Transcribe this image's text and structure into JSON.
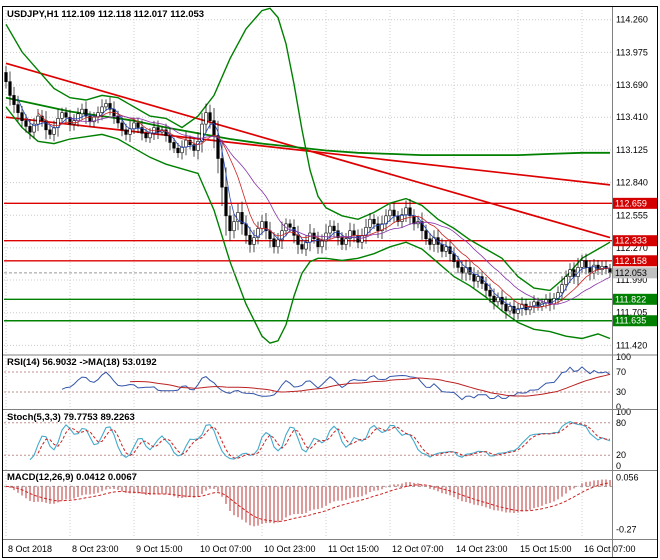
{
  "chart_data": {
    "type": "candlestick",
    "symbol": "USDJPY",
    "timeframe": "H1",
    "window_title": "USDJPY,H1 112.109 112.118 112.017 112.053",
    "current_bar": {
      "open": 112.109,
      "high": 112.118,
      "low": 112.017,
      "close": 112.053
    },
    "bars": 152,
    "x_label_step_bars": 16,
    "x_labels": [
      "8 Oct 2018",
      "8 Oct 23:00",
      "9 Oct 15:00",
      "10 Oct 07:00",
      "10 Oct 23:00",
      "11 Oct 15:00",
      "12 Oct 07:00",
      "14 Oct 23:00",
      "15 Oct 15:00",
      "16 Oct 07:00"
    ],
    "y_ticks": [
      "114.260",
      "113.975",
      "113.690",
      "113.410",
      "113.125",
      "112.840",
      "112.555",
      "112.270",
      "111.990",
      "111.705",
      "111.420"
    ],
    "price_scale": {
      "max": 114.345,
      "min": 111.345
    },
    "grid_color": "#cccccc",
    "first_open": 113.8,
    "wick": {
      "base": 0.015,
      "factor": 0.55,
      "var": 0.004,
      "mod": 7
    },
    "closes": [
      113.72,
      113.6,
      113.52,
      113.45,
      113.38,
      113.33,
      113.28,
      113.35,
      113.42,
      113.38,
      113.3,
      113.26,
      113.32,
      113.4,
      113.45,
      113.41,
      113.35,
      113.38,
      113.44,
      113.48,
      113.42,
      113.37,
      113.41,
      113.45,
      113.5,
      113.53,
      113.48,
      113.42,
      113.36,
      113.3,
      113.26,
      113.31,
      113.36,
      113.32,
      113.27,
      113.23,
      113.27,
      113.32,
      113.28,
      113.3,
      113.25,
      113.19,
      113.14,
      113.1,
      113.15,
      113.21,
      113.17,
      113.12,
      113.2,
      113.35,
      113.45,
      113.38,
      113.25,
      113.05,
      112.8,
      112.55,
      112.42,
      112.5,
      112.58,
      112.48,
      112.38,
      112.3,
      112.36,
      112.44,
      112.5,
      112.42,
      112.35,
      112.28,
      112.34,
      112.42,
      112.48,
      112.45,
      112.38,
      112.3,
      112.26,
      112.32,
      112.4,
      112.35,
      112.28,
      112.33,
      112.4,
      112.46,
      112.42,
      112.36,
      112.3,
      112.35,
      112.42,
      112.38,
      112.32,
      112.38,
      112.45,
      112.52,
      112.48,
      112.42,
      112.48,
      112.55,
      112.6,
      112.55,
      112.5,
      112.56,
      112.62,
      112.55,
      112.48,
      112.5,
      112.42,
      112.35,
      112.3,
      112.36,
      112.3,
      112.24,
      112.28,
      112.22,
      112.15,
      112.1,
      112.05,
      112.1,
      112.04,
      111.98,
      112.02,
      111.96,
      111.9,
      111.85,
      111.8,
      111.84,
      111.78,
      111.72,
      111.76,
      111.7,
      111.74,
      111.78,
      111.73,
      111.76,
      111.8,
      111.76,
      111.79,
      111.82,
      111.78,
      111.83,
      111.88,
      111.95,
      112.02,
      112.08,
      112.02,
      112.1,
      112.16,
      112.1,
      112.05,
      112.12,
      112.08,
      112.11,
      112.09,
      112.053
    ],
    "ma_overlays": [
      {
        "name": "ma-fast-blue",
        "period": 4,
        "color": "#2244bb"
      },
      {
        "name": "ma-mid-red",
        "period": 9,
        "color": "#cc2222"
      },
      {
        "name": "ma-slow-purple",
        "period": 17,
        "color": "#8833aa"
      }
    ],
    "green_overlays": {
      "color": "#008000",
      "band_upper": [
        [
          0,
          114.22
        ],
        [
          4,
          113.98
        ],
        [
          8,
          113.82
        ],
        [
          12,
          113.66
        ],
        [
          16,
          113.58
        ],
        [
          20,
          113.56
        ],
        [
          24,
          113.6
        ],
        [
          28,
          113.58
        ],
        [
          32,
          113.5
        ],
        [
          36,
          113.42
        ],
        [
          40,
          113.4
        ],
        [
          44,
          113.32
        ],
        [
          48,
          113.42
        ],
        [
          52,
          113.6
        ],
        [
          56,
          113.92
        ],
        [
          60,
          114.18
        ],
        [
          64,
          114.34
        ],
        [
          66,
          114.36
        ],
        [
          68,
          114.28
        ],
        [
          70,
          114.05
        ],
        [
          72,
          113.7
        ],
        [
          74,
          113.3
        ],
        [
          76,
          112.95
        ],
        [
          78,
          112.72
        ],
        [
          80,
          112.62
        ],
        [
          84,
          112.55
        ],
        [
          88,
          112.52
        ],
        [
          92,
          112.58
        ],
        [
          96,
          112.66
        ],
        [
          100,
          112.7
        ],
        [
          104,
          112.64
        ],
        [
          108,
          112.52
        ],
        [
          112,
          112.44
        ],
        [
          116,
          112.34
        ],
        [
          120,
          112.26
        ],
        [
          124,
          112.18
        ],
        [
          128,
          112.02
        ],
        [
          132,
          111.92
        ],
        [
          136,
          111.9
        ],
        [
          140,
          112.02
        ],
        [
          144,
          112.18
        ],
        [
          148,
          112.26
        ],
        [
          151,
          112.32
        ]
      ],
      "band_lower": [
        [
          0,
          113.5
        ],
        [
          4,
          113.32
        ],
        [
          8,
          113.2
        ],
        [
          12,
          113.18
        ],
        [
          16,
          113.22
        ],
        [
          20,
          113.24
        ],
        [
          24,
          113.26
        ],
        [
          28,
          113.22
        ],
        [
          32,
          113.14
        ],
        [
          36,
          113.06
        ],
        [
          40,
          113.0
        ],
        [
          44,
          112.96
        ],
        [
          48,
          112.92
        ],
        [
          52,
          112.6
        ],
        [
          56,
          112.15
        ],
        [
          60,
          111.78
        ],
        [
          64,
          111.5
        ],
        [
          66,
          111.44
        ],
        [
          68,
          111.46
        ],
        [
          70,
          111.6
        ],
        [
          72,
          111.85
        ],
        [
          74,
          112.05
        ],
        [
          76,
          112.15
        ],
        [
          78,
          112.18
        ],
        [
          80,
          112.18
        ],
        [
          84,
          112.16
        ],
        [
          88,
          112.18
        ],
        [
          92,
          112.22
        ],
        [
          96,
          112.28
        ],
        [
          100,
          112.32
        ],
        [
          104,
          112.26
        ],
        [
          108,
          112.14
        ],
        [
          112,
          112.02
        ],
        [
          116,
          111.94
        ],
        [
          120,
          111.84
        ],
        [
          124,
          111.72
        ],
        [
          128,
          111.62
        ],
        [
          132,
          111.56
        ],
        [
          136,
          111.54
        ],
        [
          140,
          111.5
        ],
        [
          144,
          111.48
        ],
        [
          148,
          111.52
        ],
        [
          151,
          111.48
        ]
      ],
      "ma_long": [
        [
          0,
          113.58
        ],
        [
          8,
          113.52
        ],
        [
          16,
          113.46
        ],
        [
          24,
          113.42
        ],
        [
          32,
          113.38
        ],
        [
          40,
          113.32
        ],
        [
          48,
          113.27
        ],
        [
          56,
          113.22
        ],
        [
          64,
          113.18
        ],
        [
          72,
          113.15
        ],
        [
          80,
          113.12
        ],
        [
          88,
          113.1
        ],
        [
          96,
          113.09
        ],
        [
          104,
          113.08
        ],
        [
          112,
          113.08
        ],
        [
          120,
          113.08
        ],
        [
          128,
          113.08
        ],
        [
          136,
          113.09
        ],
        [
          144,
          113.1
        ],
        [
          151,
          113.1
        ]
      ]
    },
    "trendlines": {
      "color": "#dd0000",
      "lines": [
        {
          "b1": 0,
          "p1": 113.88,
          "b2": 151,
          "p2": 112.36
        },
        {
          "b1": 0,
          "p1": 113.41,
          "b2": 151,
          "p2": 112.82
        }
      ]
    },
    "h_levels": [
      {
        "price": 112.659,
        "text": "112.659",
        "color": "#dd0000",
        "tag_bg": "#d40000",
        "tag_fg": "#ffffff"
      },
      {
        "price": 112.333,
        "text": "112.333",
        "color": "#dd0000",
        "tag_bg": "#d40000",
        "tag_fg": "#ffffff"
      },
      {
        "price": 112.158,
        "text": "112.158",
        "color": "#dd0000",
        "tag_bg": "#d40000",
        "tag_fg": "#ffffff"
      },
      {
        "price": 111.822,
        "text": "111.822",
        "color": "#008000",
        "tag_bg": "#008000",
        "tag_fg": "#ffffff"
      },
      {
        "price": 111.635,
        "text": "111.635",
        "color": "#008000",
        "tag_bg": "#008000",
        "tag_fg": "#ffffff"
      }
    ],
    "current_price": {
      "value": 112.053,
      "text": "112.053",
      "tag_bg": "#c0c0c0",
      "tag_fg": "#000000"
    },
    "indicators": {
      "rsi": {
        "label": "RSI(14) 56.9032 ->MA(18) 53.0192",
        "period": 14,
        "ma_period": 18,
        "levels": [
          70,
          30
        ],
        "scale_labels": [
          "100",
          "70",
          "30",
          "0"
        ],
        "scale_values": [
          100,
          70,
          30,
          0
        ],
        "line_color": "#3355aa",
        "ma_color": "#bb2222"
      },
      "stoch": {
        "label": "Stoch(5,3,3) 79.7753 89.2263",
        "k": 5,
        "slow": 3,
        "d": 3,
        "levels": [
          80,
          20
        ],
        "scale_labels": [
          "100",
          "80",
          "20",
          "0"
        ],
        "scale_values": [
          100,
          80,
          20,
          0
        ],
        "main_color": "#44aacc",
        "signal_color": "#cc2222"
      },
      "macd": {
        "label": "MACD(12,26,9) 0.0412 0.0067",
        "fast": 12,
        "slow": 26,
        "signal": 9,
        "scale_labels": [
          "0.056",
          "-0.27"
        ],
        "scale_values": [
          0.056,
          -0.27
        ],
        "range": {
          "max": 0.09,
          "min": -0.31
        },
        "hist_color": "#cc5555",
        "signal_color": "#cc2222"
      }
    }
  }
}
